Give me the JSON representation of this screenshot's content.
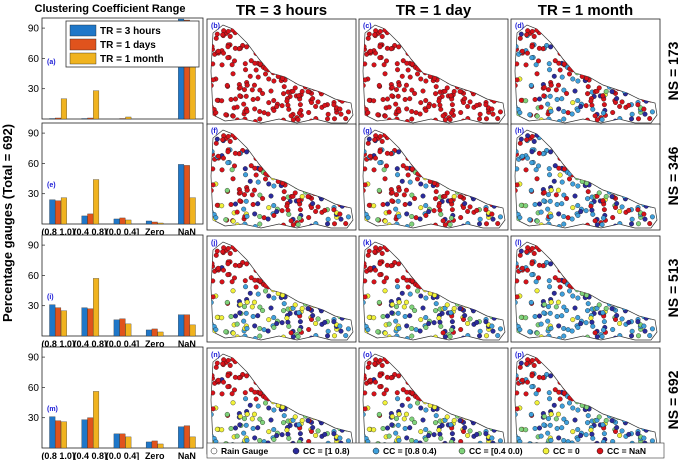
{
  "title": "Clustering Coefficient Range",
  "y_axis_label": "Percentage gauges (Total = 692)",
  "column_titles": [
    "TR = 3 hours",
    "TR = 1 day",
    "TR = 1 month"
  ],
  "row_labels": [
    "NS = 173",
    "NS = 346",
    "NS = 513",
    "NS = 692"
  ],
  "legend": [
    "TR = 3 hours",
    "TR = 1 days",
    "TR = 1 month"
  ],
  "map_legend": [
    "Rain Gauge",
    "CC = [1 0.8)",
    "CC = [0.8 0.4)",
    "CC = [0.4 0.0)",
    "CC = 0",
    "CC = NaN"
  ],
  "map_panel_labels": [
    [
      "(b)",
      "(c)",
      "(d)"
    ],
    [
      "(f)",
      "(g)",
      "(h)"
    ],
    [
      "(j)",
      "(k)",
      "(l)"
    ],
    [
      "(n)",
      "(o)",
      "(p)"
    ]
  ],
  "colors": {
    "tr_3h": "#1f77c8",
    "tr_1d": "#e0531d",
    "tr_1m": "#f0b31f",
    "cc_high": "#2b2b9c",
    "cc_mid": "#3fa0dc",
    "cc_low": "#7fd37a",
    "cc_zero": "#f1f23a",
    "cc_nan": "#d8121a"
  },
  "chart_data": [
    {
      "type": "bar",
      "panel": "(a)",
      "categories": [
        "(0.8 1.0]",
        "(0.4 0.8]",
        "(0.0 0.4]",
        "Zero",
        "NaN"
      ],
      "series": [
        {
          "name": "TR = 3 hours",
          "values": [
            0.5,
            0.5,
            0,
            0,
            99
          ]
        },
        {
          "name": "TR = 1 days",
          "values": [
            1,
            1,
            0.5,
            0,
            98
          ]
        },
        {
          "name": "TR = 1 month",
          "values": [
            20,
            28,
            2,
            0,
            52
          ]
        }
      ],
      "ylim": [
        0,
        100
      ],
      "yticks": [
        30,
        60,
        90
      ]
    },
    {
      "type": "bar",
      "panel": "(e)",
      "categories": [
        "(0.8 1.0]",
        "(0.4 0.8]",
        "(0.0 0.4]",
        "Zero",
        "NaN"
      ],
      "series": [
        {
          "name": "TR = 3 hours",
          "values": [
            24,
            8,
            5,
            3,
            59
          ]
        },
        {
          "name": "TR = 1 days",
          "values": [
            23,
            10,
            6,
            2,
            58
          ]
        },
        {
          "name": "TR = 1 month",
          "values": [
            26,
            44,
            4,
            1,
            26
          ]
        }
      ],
      "ylim": [
        0,
        100
      ],
      "yticks": [
        30,
        60,
        90
      ]
    },
    {
      "type": "bar",
      "panel": "(i)",
      "categories": [
        "(0.8 1.0]",
        "(0.4 0.8]",
        "(0.0 0.4]",
        "Zero",
        "NaN"
      ],
      "series": [
        {
          "name": "TR = 3 hours",
          "values": [
            31,
            28,
            16,
            6,
            21
          ]
        },
        {
          "name": "TR = 1 days",
          "values": [
            28,
            27,
            17,
            7,
            21
          ]
        },
        {
          "name": "TR = 1 month",
          "values": [
            25,
            57,
            12,
            4,
            11
          ]
        }
      ],
      "ylim": [
        0,
        100
      ],
      "yticks": [
        30,
        60,
        90
      ]
    },
    {
      "type": "bar",
      "panel": "(m)",
      "categories": [
        "(0.8 1.0]",
        "(0.4 0.8]",
        "(0.0 0.4]",
        "Zero",
        "NaN"
      ],
      "series": [
        {
          "name": "TR = 3 hours",
          "values": [
            31,
            28,
            14,
            6,
            21
          ]
        },
        {
          "name": "TR = 1 days",
          "values": [
            27,
            30,
            14,
            7,
            22
          ]
        },
        {
          "name": "TR = 1 month",
          "values": [
            26,
            56,
            11,
            4,
            11
          ]
        }
      ],
      "ylim": [
        0,
        100
      ],
      "yticks": [
        30,
        60,
        90
      ]
    }
  ]
}
